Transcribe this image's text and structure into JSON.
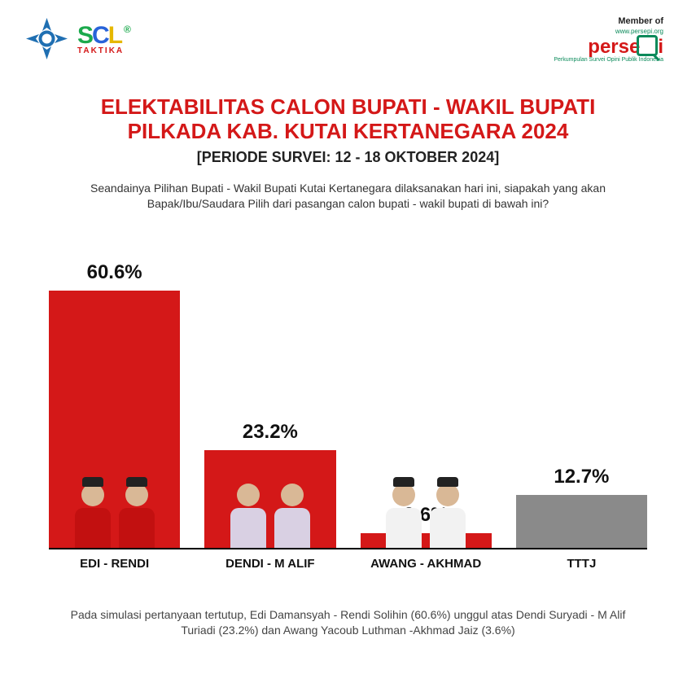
{
  "header": {
    "scl_sub": "TAKTIKA",
    "member_of": "Member of",
    "persepi": "perse",
    "persepi_url": "www.persepi.org",
    "persepi_tag": "Perkumpulan Survei Opini Publik Indonesia"
  },
  "title": {
    "line1": "ELEKTABILITAS CALON BUPATI - WAKIL BUPATI",
    "line2": "PILKADA KAB. KUTAI KERTANEGARA 2024",
    "period": "[PERIODE SURVEI: 12 - 18 OKTOBER 2024]"
  },
  "question": "Seandainya Pilihan Bupati - Wakil Bupati Kutai Kertanegara dilaksanakan hari ini, siapakah yang akan Bapak/Ibu/Saudara Pilih dari pasangan calon bupati - wakil bupati di bawah ini?",
  "chart": {
    "type": "bar",
    "y_max": 65,
    "bar_width_ratio": 1.0,
    "baseline_color": "#000000",
    "background_color": "#ffffff",
    "pct_fontsize": 24,
    "label_fontsize": 15,
    "bars": [
      {
        "label": "EDI - RENDI",
        "value": 60.6,
        "pct_text": "60.6%",
        "color": "#d41818",
        "shirt_color": "#c21010",
        "has_candidates": true,
        "has_cap": true
      },
      {
        "label": "DENDI - M ALIF",
        "value": 23.2,
        "pct_text": "23.2%",
        "color": "#d41818",
        "shirt_color": "#d9d0e3",
        "has_candidates": true,
        "has_cap": false
      },
      {
        "label": "AWANG - AKHMAD",
        "value": 3.6,
        "pct_text": "3.6%",
        "color": "#d41818",
        "shirt_color": "#f2f2f2",
        "has_candidates": true,
        "has_cap": true
      },
      {
        "label": "TTTJ",
        "value": 12.7,
        "pct_text": "12.7%",
        "color": "#8a8a8a",
        "shirt_color": "",
        "has_candidates": false,
        "has_cap": false
      }
    ]
  },
  "footer": "Pada simulasi pertanyaan tertutup, Edi Damansyah - Rendi Solihin (60.6%) unggul atas Dendi Suryadi - M Alif Turiadi (23.2%) dan Awang Yacoub Luthman -Akhmad Jaiz (3.6%)",
  "colors": {
    "title_red": "#d41818",
    "text_dark": "#222222",
    "persepi_green": "#0a8a5a"
  }
}
